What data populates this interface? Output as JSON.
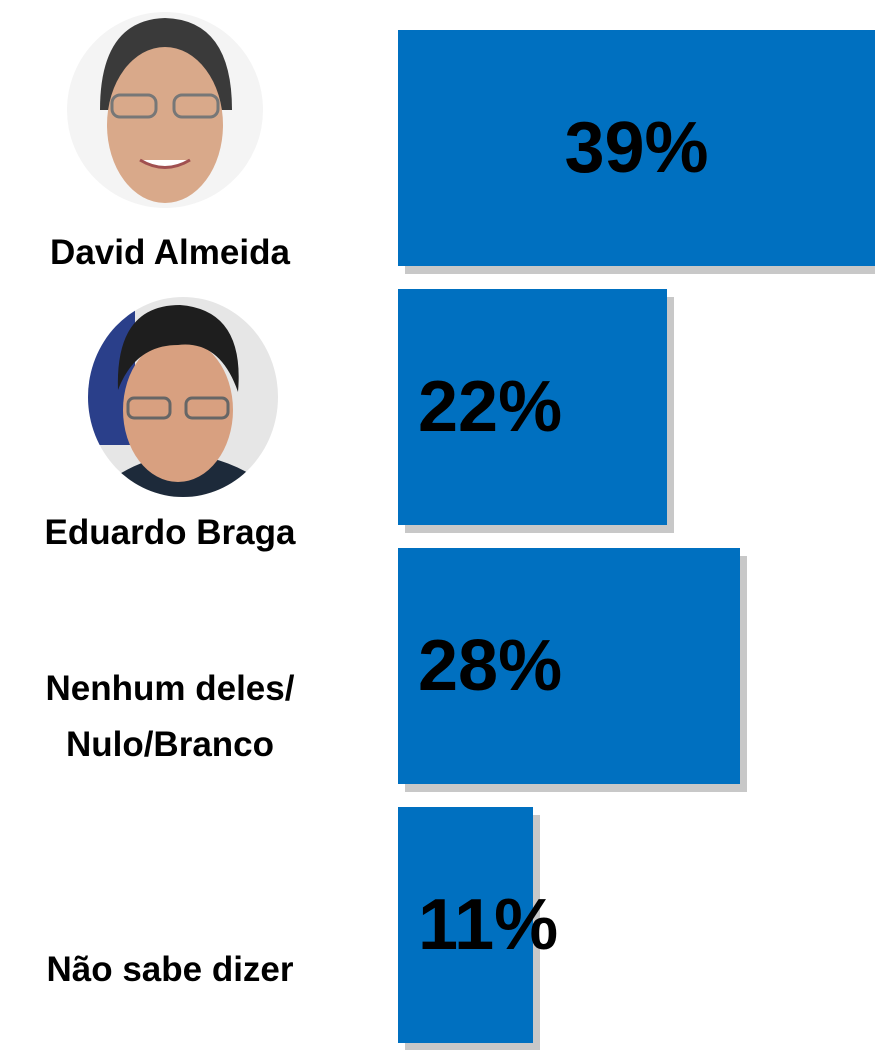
{
  "chart_data": {
    "type": "bar",
    "orientation": "horizontal",
    "categories": [
      "David Almeida",
      "Eduardo Braga",
      "Nenhum deles/ Nulo/Branco",
      "Não sabe dizer"
    ],
    "values": [
      39,
      22,
      28,
      11
    ],
    "value_labels": [
      "39%",
      "22%",
      "28%",
      "11%"
    ],
    "color": "#0070c0"
  }
}
